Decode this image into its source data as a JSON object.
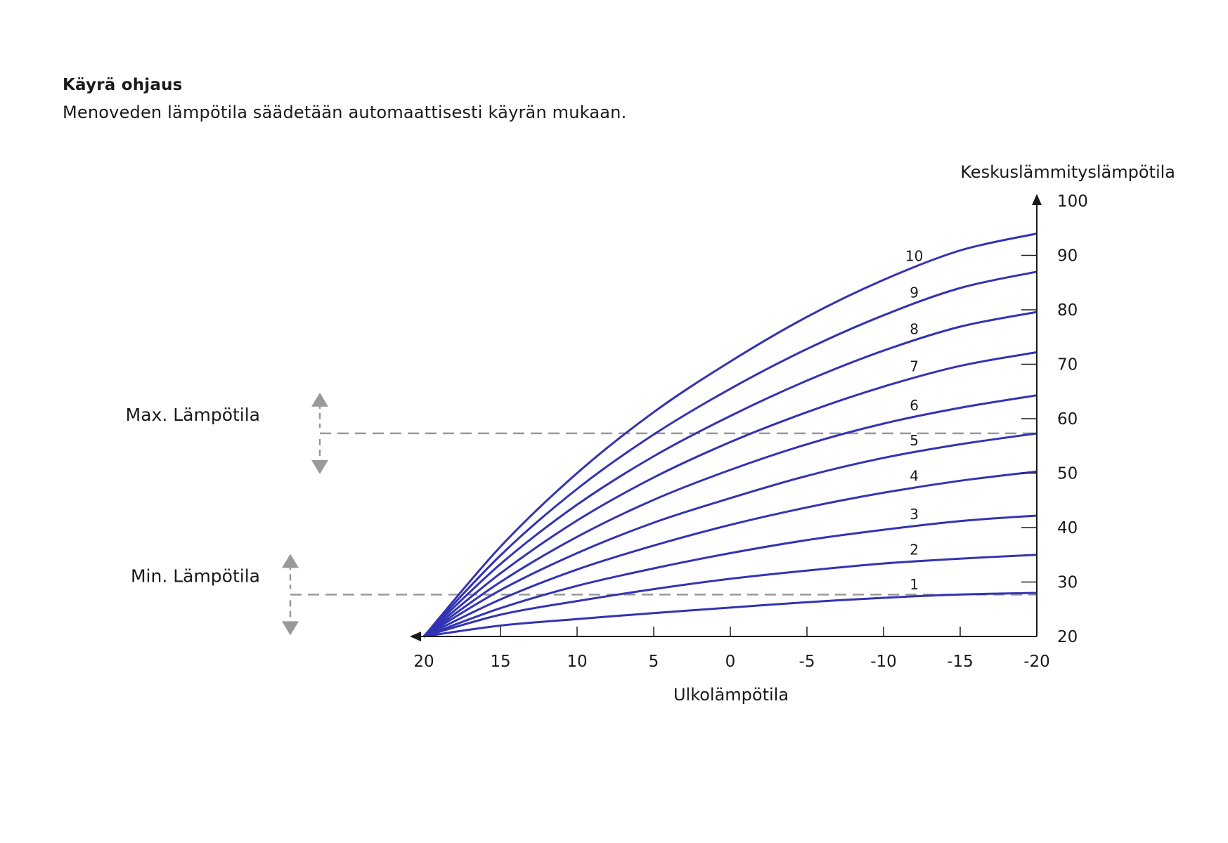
{
  "header": {
    "title": "Käyrä ohjaus",
    "subtitle": "Menoveden lämpötila säädetään automaattisesti käyrän mukaan."
  },
  "colors": {
    "curve": "#3333b5",
    "guide": "#999999",
    "axis": "#1a1a1a"
  },
  "chart_data": {
    "type": "line",
    "xlabel": "Ulkolämpötila",
    "ylabel": "Keskuslämmityslämpötila",
    "xlim": [
      20,
      -20
    ],
    "ylim": [
      20,
      100
    ],
    "x_ticks": [
      20,
      15,
      10,
      5,
      0,
      -5,
      -10,
      -15,
      -20
    ],
    "y_ticks": [
      20,
      30,
      40,
      50,
      60,
      70,
      80,
      90,
      100
    ],
    "series": [
      {
        "name": "1",
        "points": [
          [
            20,
            20
          ],
          [
            15,
            22
          ],
          [
            10,
            23.2
          ],
          [
            5,
            24.3
          ],
          [
            0,
            25.3
          ],
          [
            -5,
            26.3
          ],
          [
            -10,
            27.1
          ],
          [
            -15,
            27.7
          ],
          [
            -20,
            28
          ]
        ]
      },
      {
        "name": "2",
        "points": [
          [
            20,
            20
          ],
          [
            15,
            24
          ],
          [
            10,
            26.5
          ],
          [
            5,
            28.7
          ],
          [
            0,
            30.6
          ],
          [
            -5,
            32.1
          ],
          [
            -10,
            33.4
          ],
          [
            -15,
            34.3
          ],
          [
            -20,
            35
          ]
        ]
      },
      {
        "name": "3",
        "points": [
          [
            20,
            20
          ],
          [
            15,
            25.2
          ],
          [
            10,
            29.3
          ],
          [
            5,
            32.5
          ],
          [
            0,
            35.3
          ],
          [
            -5,
            37.7
          ],
          [
            -10,
            39.6
          ],
          [
            -15,
            41.2
          ],
          [
            -20,
            42.2
          ]
        ]
      },
      {
        "name": "4",
        "points": [
          [
            20,
            20
          ],
          [
            15,
            26.8
          ],
          [
            10,
            32.3
          ],
          [
            5,
            36.7
          ],
          [
            0,
            40.5
          ],
          [
            -5,
            43.7
          ],
          [
            -10,
            46.4
          ],
          [
            -15,
            48.6
          ],
          [
            -20,
            50.3
          ]
        ]
      },
      {
        "name": "5",
        "points": [
          [
            20,
            20
          ],
          [
            15,
            28.5
          ],
          [
            10,
            35.3
          ],
          [
            5,
            40.9
          ],
          [
            0,
            45.4
          ],
          [
            -5,
            49.5
          ],
          [
            -10,
            52.8
          ],
          [
            -15,
            55.3
          ],
          [
            -20,
            57.3
          ]
        ]
      },
      {
        "name": "6",
        "points": [
          [
            20,
            20
          ],
          [
            15,
            30
          ],
          [
            10,
            38.3
          ],
          [
            5,
            45.1
          ],
          [
            0,
            50.6
          ],
          [
            -5,
            55.3
          ],
          [
            -10,
            59.1
          ],
          [
            -15,
            62
          ],
          [
            -20,
            64.3
          ]
        ]
      },
      {
        "name": "7",
        "points": [
          [
            20,
            20
          ],
          [
            15,
            31.6
          ],
          [
            10,
            41.3
          ],
          [
            5,
            49.2
          ],
          [
            0,
            55.7
          ],
          [
            -5,
            61.2
          ],
          [
            -10,
            65.9
          ],
          [
            -15,
            69.7
          ],
          [
            -20,
            72.2
          ]
        ]
      },
      {
        "name": "8",
        "points": [
          [
            20,
            20
          ],
          [
            15,
            33.3
          ],
          [
            10,
            44.2
          ],
          [
            5,
            53.1
          ],
          [
            0,
            60.5
          ],
          [
            -5,
            67
          ],
          [
            -10,
            72.5
          ],
          [
            -15,
            76.9
          ],
          [
            -20,
            79.6
          ]
        ]
      },
      {
        "name": "9",
        "points": [
          [
            20,
            20
          ],
          [
            15,
            34.9
          ],
          [
            10,
            47.1
          ],
          [
            5,
            57.1
          ],
          [
            0,
            65.5
          ],
          [
            -5,
            72.8
          ],
          [
            -10,
            79
          ],
          [
            -15,
            84
          ],
          [
            -20,
            87
          ]
        ]
      },
      {
        "name": "10",
        "points": [
          [
            20,
            20
          ],
          [
            15,
            36.5
          ],
          [
            10,
            50
          ],
          [
            5,
            61.2
          ],
          [
            0,
            70.5
          ],
          [
            -5,
            78.7
          ],
          [
            -10,
            85.5
          ],
          [
            -15,
            90.9
          ],
          [
            -20,
            94
          ]
        ]
      }
    ],
    "curve_labels_at_x": -12,
    "limits": [
      {
        "label": "Max. Lämpötila",
        "value": 57.3
      },
      {
        "label": "Min. Lämpötila",
        "value": 27.7
      }
    ]
  }
}
